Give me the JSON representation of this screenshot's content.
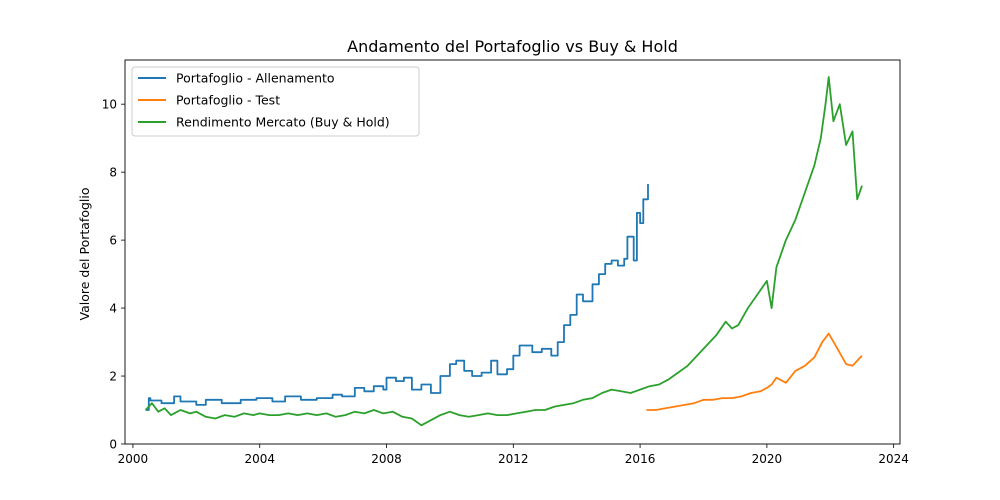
{
  "chart_data": {
    "type": "line",
    "title": "Andamento del Portafoglio vs Buy & Hold",
    "xlabel": "",
    "ylabel": "Valore del Portafoglio",
    "xlim": [
      1999.75,
      2024.2
    ],
    "ylim": [
      0,
      11.3
    ],
    "x_ticks": [
      2000,
      2004,
      2008,
      2012,
      2016,
      2020,
      2024
    ],
    "y_ticks": [
      0,
      2,
      4,
      6,
      8,
      10
    ],
    "grid": false,
    "legend_position": "upper-left",
    "series": [
      {
        "name": "Portafoglio - Allenamento",
        "color": "#1f77b4",
        "style": "step",
        "x": [
          2000.4,
          2000.5,
          2000.55,
          2000.9,
          2001.3,
          2001.5,
          2002.0,
          2002.3,
          2002.8,
          2003.4,
          2003.9,
          2004.4,
          2004.8,
          2005.3,
          2005.8,
          2006.3,
          2006.6,
          2007.0,
          2007.3,
          2007.6,
          2007.9,
          2008.0,
          2008.3,
          2008.55,
          2008.8,
          2009.1,
          2009.4,
          2009.7,
          2010.0,
          2010.2,
          2010.45,
          2010.7,
          2011.0,
          2011.3,
          2011.5,
          2011.8,
          2012.0,
          2012.2,
          2012.6,
          2012.9,
          2013.2,
          2013.4,
          2013.6,
          2013.8,
          2014.0,
          2014.2,
          2014.5,
          2014.7,
          2014.9,
          2015.1,
          2015.3,
          2015.5,
          2015.6,
          2015.8,
          2015.9,
          2016.0,
          2016.1,
          2016.25
        ],
        "y": [
          1.0,
          1.35,
          1.28,
          1.2,
          1.4,
          1.25,
          1.15,
          1.3,
          1.2,
          1.3,
          1.35,
          1.25,
          1.4,
          1.3,
          1.35,
          1.45,
          1.4,
          1.65,
          1.55,
          1.7,
          1.6,
          1.95,
          1.85,
          1.95,
          1.6,
          1.75,
          1.5,
          2.0,
          2.35,
          2.45,
          2.15,
          2.0,
          2.1,
          2.45,
          2.05,
          2.2,
          2.6,
          2.9,
          2.7,
          2.8,
          2.6,
          3.0,
          3.5,
          3.8,
          4.4,
          4.2,
          4.7,
          5.0,
          5.3,
          5.4,
          5.25,
          5.45,
          6.1,
          5.4,
          6.8,
          6.5,
          7.2,
          7.65
        ]
      },
      {
        "name": "Portafoglio - Test",
        "color": "#ff7f0e",
        "style": "line",
        "x": [
          2016.2,
          2016.5,
          2016.8,
          2017.1,
          2017.4,
          2017.7,
          2018.0,
          2018.3,
          2018.6,
          2018.9,
          2019.2,
          2019.5,
          2019.8,
          2020.0,
          2020.15,
          2020.3,
          2020.6,
          2020.9,
          2021.2,
          2021.5,
          2021.75,
          2021.95,
          2022.2,
          2022.5,
          2022.7,
          2022.9,
          2023.0
        ],
        "y": [
          1.0,
          1.0,
          1.05,
          1.1,
          1.15,
          1.2,
          1.3,
          1.3,
          1.35,
          1.35,
          1.4,
          1.5,
          1.55,
          1.65,
          1.75,
          1.95,
          1.8,
          2.15,
          2.3,
          2.55,
          3.0,
          3.25,
          2.85,
          2.35,
          2.3,
          2.5,
          2.6
        ]
      },
      {
        "name": "Rendimento Mercato (Buy & Hold)",
        "color": "#2ca02c",
        "style": "line",
        "x": [
          2000.4,
          2000.6,
          2000.8,
          2001.0,
          2001.2,
          2001.5,
          2001.8,
          2002.0,
          2002.3,
          2002.6,
          2002.9,
          2003.2,
          2003.5,
          2003.8,
          2004.0,
          2004.3,
          2004.6,
          2004.9,
          2005.2,
          2005.5,
          2005.8,
          2006.1,
          2006.4,
          2006.7,
          2007.0,
          2007.3,
          2007.6,
          2007.9,
          2008.2,
          2008.5,
          2008.8,
          2009.1,
          2009.4,
          2009.7,
          2010.0,
          2010.3,
          2010.6,
          2010.9,
          2011.2,
          2011.5,
          2011.8,
          2012.1,
          2012.4,
          2012.7,
          2013.0,
          2013.3,
          2013.6,
          2013.9,
          2014.2,
          2014.5,
          2014.8,
          2015.1,
          2015.4,
          2015.7,
          2016.0,
          2016.3,
          2016.6,
          2016.9,
          2017.2,
          2017.5,
          2017.8,
          2018.1,
          2018.4,
          2018.7,
          2018.9,
          2019.1,
          2019.4,
          2019.7,
          2020.0,
          2020.15,
          2020.3,
          2020.6,
          2020.9,
          2021.2,
          2021.5,
          2021.7,
          2021.85,
          2021.95,
          2022.1,
          2022.3,
          2022.5,
          2022.7,
          2022.85,
          2023.0
        ],
        "y": [
          1.0,
          1.2,
          0.95,
          1.05,
          0.85,
          1.0,
          0.9,
          0.95,
          0.8,
          0.75,
          0.85,
          0.8,
          0.9,
          0.85,
          0.9,
          0.85,
          0.85,
          0.9,
          0.85,
          0.9,
          0.85,
          0.9,
          0.8,
          0.85,
          0.95,
          0.9,
          1.0,
          0.9,
          0.95,
          0.8,
          0.75,
          0.55,
          0.7,
          0.85,
          0.95,
          0.85,
          0.8,
          0.85,
          0.9,
          0.85,
          0.85,
          0.9,
          0.95,
          1.0,
          1.0,
          1.1,
          1.15,
          1.2,
          1.3,
          1.35,
          1.5,
          1.6,
          1.55,
          1.5,
          1.6,
          1.7,
          1.75,
          1.9,
          2.1,
          2.3,
          2.6,
          2.9,
          3.2,
          3.6,
          3.4,
          3.5,
          4.0,
          4.4,
          4.8,
          4.0,
          5.2,
          6.0,
          6.6,
          7.4,
          8.2,
          9.0,
          10.0,
          10.8,
          9.5,
          10.0,
          8.8,
          9.2,
          7.2,
          7.6
        ]
      }
    ]
  }
}
